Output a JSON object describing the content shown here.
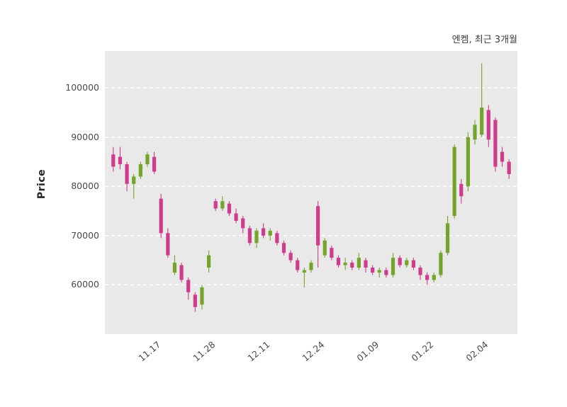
{
  "chart_data": {
    "type": "candlestick",
    "title": "엔켐, 최근 3개월",
    "ylabel": "Price",
    "legend_position": "none",
    "grid": true,
    "plot_bg": "#e9e9e9",
    "grid_color": "#ffffff",
    "up_color": "#76a32b",
    "down_color": "#cf3c8c",
    "text_color": "#4a4a4a",
    "ylim": [
      50000,
      107500
    ],
    "y_ticks": [
      60000,
      70000,
      80000,
      90000,
      100000
    ],
    "x_tick_labels": [
      "11.17",
      "11.28",
      "12.11",
      "12.24",
      "01.09",
      "01.22",
      "02.04"
    ],
    "x_tick_indices": [
      6,
      14,
      22,
      30,
      38,
      46,
      54
    ],
    "candle_format": [
      "open",
      "high",
      "low",
      "close"
    ],
    "candles": [
      [
        86500,
        88000,
        83000,
        84000
      ],
      [
        86000,
        88000,
        83500,
        84500
      ],
      [
        84500,
        85000,
        79000,
        80500
      ],
      [
        80500,
        82500,
        77500,
        82000
      ],
      [
        82000,
        85000,
        81500,
        84500
      ],
      [
        84500,
        87000,
        84000,
        86500
      ],
      [
        86000,
        87000,
        82500,
        83000
      ],
      [
        77500,
        78500,
        69500,
        70500
      ],
      [
        70500,
        71500,
        65500,
        66000
      ],
      [
        62500,
        66000,
        62000,
        64500
      ],
      [
        64000,
        64500,
        60500,
        61000
      ],
      [
        61000,
        61500,
        57000,
        58500
      ],
      [
        58000,
        58500,
        54500,
        55500
      ],
      [
        56000,
        60000,
        55000,
        59500
      ],
      [
        63500,
        67000,
        62500,
        66000
      ],
      [
        77000,
        77500,
        75000,
        75500
      ],
      [
        75500,
        78000,
        75000,
        77000
      ],
      [
        76500,
        77000,
        74000,
        74500
      ],
      [
        74500,
        75500,
        72500,
        73000
      ],
      [
        73500,
        74000,
        70500,
        71500
      ],
      [
        71500,
        72000,
        68000,
        68500
      ],
      [
        68500,
        71500,
        67500,
        71000
      ],
      [
        71500,
        72500,
        69500,
        70000
      ],
      [
        70000,
        71500,
        69000,
        71000
      ],
      [
        70500,
        71000,
        68000,
        68500
      ],
      [
        68500,
        69000,
        66000,
        66500
      ],
      [
        66500,
        67000,
        64500,
        65000
      ],
      [
        65000,
        65500,
        62500,
        63000
      ],
      [
        62500,
        63500,
        59500,
        63000
      ],
      [
        63000,
        65000,
        62500,
        64500
      ],
      [
        76000,
        77000,
        63500,
        68000
      ],
      [
        66000,
        69500,
        65500,
        69000
      ],
      [
        67500,
        68000,
        65000,
        65500
      ],
      [
        65500,
        66000,
        63500,
        64000
      ],
      [
        64000,
        65500,
        63000,
        64500
      ],
      [
        64500,
        65000,
        63000,
        63500
      ],
      [
        63500,
        66500,
        63000,
        65500
      ],
      [
        65000,
        65500,
        62500,
        63500
      ],
      [
        63500,
        64000,
        62000,
        62500
      ],
      [
        62500,
        63500,
        61500,
        63000
      ],
      [
        63000,
        63500,
        61500,
        62000
      ],
      [
        62000,
        66500,
        61500,
        65500
      ],
      [
        65500,
        66000,
        63500,
        64000
      ],
      [
        64000,
        65500,
        63500,
        65000
      ],
      [
        65000,
        65500,
        63000,
        63500
      ],
      [
        63500,
        64000,
        61000,
        62000
      ],
      [
        62000,
        62500,
        60000,
        61000
      ],
      [
        61000,
        62500,
        60500,
        62000
      ],
      [
        62000,
        67000,
        61500,
        66500
      ],
      [
        66500,
        74000,
        66000,
        72500
      ],
      [
        74000,
        88500,
        73500,
        88000
      ],
      [
        80500,
        81500,
        76500,
        78000
      ],
      [
        80000,
        91000,
        79000,
        90000
      ],
      [
        89500,
        93500,
        88500,
        92500
      ],
      [
        90500,
        105000,
        90000,
        96000
      ],
      [
        95500,
        96500,
        88000,
        89500
      ],
      [
        93500,
        94000,
        83000,
        84000
      ],
      [
        87000,
        88000,
        84000,
        85000
      ],
      [
        85000,
        85500,
        81500,
        82500
      ]
    ]
  }
}
